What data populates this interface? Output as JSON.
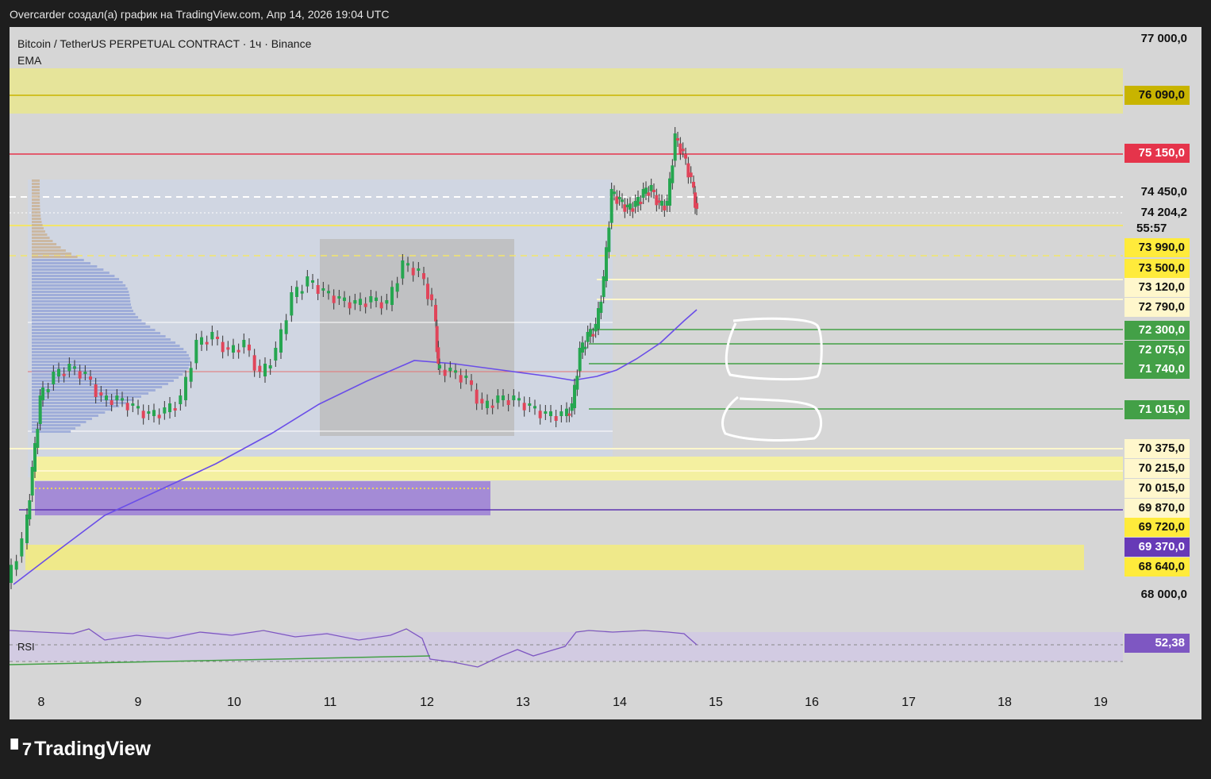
{
  "header": {
    "text": "Overcarder создал(а) график на TradingView.com, Апр 14, 2026 19:04 UTC"
  },
  "legend": {
    "symbol": "Bitcoin / TetherUS PERPETUAL CONTRACT · 1ч · Binance",
    "indicator": "EMA"
  },
  "rsi": {
    "label": "RSI",
    "value": "52,38",
    "value_color": "#7e57c2"
  },
  "price_scale": {
    "top": "77 000,0",
    "bottom": "68 000,0",
    "current_price": "74 204,2",
    "countdown": "55:57",
    "level_74450": "74 450,0"
  },
  "badges": [
    {
      "label": "76 090,0",
      "bg": "#c8b400",
      "fg": "#111111"
    },
    {
      "label": "75 150,0",
      "bg": "#e5344b",
      "fg": "#ffffff"
    },
    {
      "label": "73 990,0",
      "bg": "#ffeb3b",
      "fg": "#111111"
    },
    {
      "label": "73 500,0",
      "bg": "#ffeb3b",
      "fg": "#111111"
    },
    {
      "label": "73 120,0",
      "bg": "#fff7cc",
      "fg": "#111111"
    },
    {
      "label": "72 790,0",
      "bg": "#fff7cc",
      "fg": "#111111"
    },
    {
      "label": "72 300,0",
      "bg": "#43a047",
      "fg": "#ffffff"
    },
    {
      "label": "72 075,0",
      "bg": "#43a047",
      "fg": "#ffffff"
    },
    {
      "label": "71 740,0",
      "bg": "#43a047",
      "fg": "#ffffff"
    },
    {
      "label": "71 015,0",
      "bg": "#43a047",
      "fg": "#ffffff"
    },
    {
      "label": "70 375,0",
      "bg": "#fff7cc",
      "fg": "#111111"
    },
    {
      "label": "70 215,0",
      "bg": "#fff7cc",
      "fg": "#111111"
    },
    {
      "label": "70 015,0",
      "bg": "#fff7cc",
      "fg": "#111111"
    },
    {
      "label": "69 870,0",
      "bg": "#fff7cc",
      "fg": "#111111"
    },
    {
      "label": "69 720,0",
      "bg": "#ffeb3b",
      "fg": "#111111"
    },
    {
      "label": "69 370,0",
      "bg": "#673ab7",
      "fg": "#ffffff"
    },
    {
      "label": "68 640,0",
      "bg": "#ffeb3b",
      "fg": "#111111"
    }
  ],
  "x_axis": [
    "8",
    "9",
    "10",
    "11",
    "12",
    "13",
    "14",
    "15",
    "16",
    "17",
    "18",
    "19"
  ],
  "colors": {
    "up": "#26a650",
    "down": "#e0455a",
    "ema": "#6a4ee8"
  },
  "footer": {
    "brand": "TradingView"
  }
}
